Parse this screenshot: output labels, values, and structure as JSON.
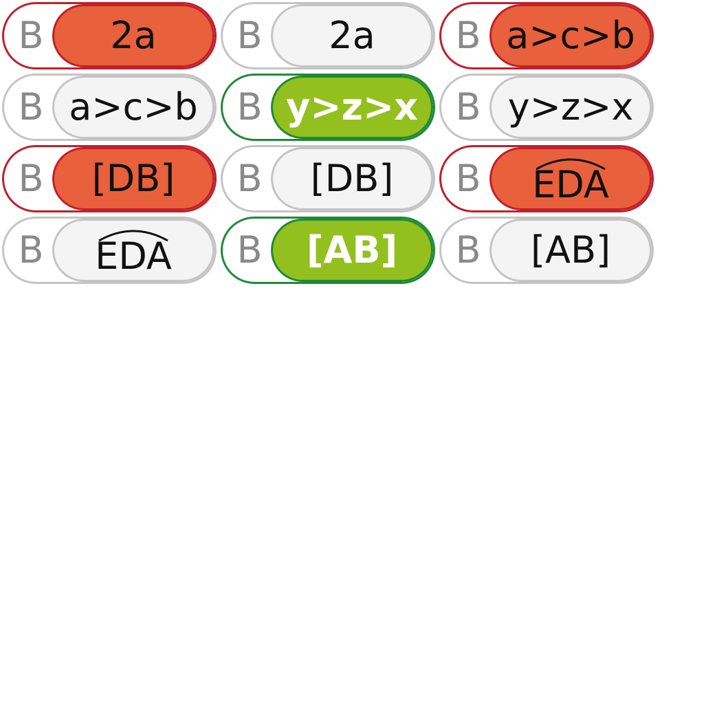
{
  "colors": {
    "wrong_border": "#c0202a",
    "wrong_fill": "#e8603c",
    "right_border": "#1f8a36",
    "right_fill": "#93c01f",
    "neutral_border": "#c4c4c4",
    "neutral_fill": "#f4f4f4",
    "letter_color": "#8a8a8a"
  },
  "rows": [
    {
      "cells": [
        {
          "letter": "B",
          "answer": "2a",
          "state": "wrong",
          "arc": false
        },
        {
          "letter": "B",
          "answer": "2a",
          "state": "neutral",
          "arc": false
        },
        {
          "letter": "B",
          "answer": "a>c>b",
          "state": "wrong",
          "arc": false
        }
      ]
    },
    {
      "cells": [
        {
          "letter": "B",
          "answer": "a>c>b",
          "state": "neutral",
          "arc": false
        },
        {
          "letter": "B",
          "answer": "y>z>x",
          "state": "right",
          "arc": false
        },
        {
          "letter": "B",
          "answer": "y>z>x",
          "state": "neutral",
          "arc": false
        }
      ]
    },
    {
      "cells": [
        {
          "letter": "B",
          "answer": "[DB]",
          "state": "wrong",
          "arc": false
        },
        {
          "letter": "B",
          "answer": "[DB]",
          "state": "neutral",
          "arc": false
        },
        {
          "letter": "B",
          "answer": "EDA",
          "state": "wrong",
          "arc": true
        }
      ]
    },
    {
      "cells": [
        {
          "letter": "B",
          "answer": "EDA",
          "state": "neutral",
          "arc": true
        },
        {
          "letter": "B",
          "answer": "[AB]",
          "state": "right",
          "arc": false
        },
        {
          "letter": "B",
          "answer": "[AB]",
          "state": "neutral",
          "arc": false
        }
      ]
    }
  ]
}
